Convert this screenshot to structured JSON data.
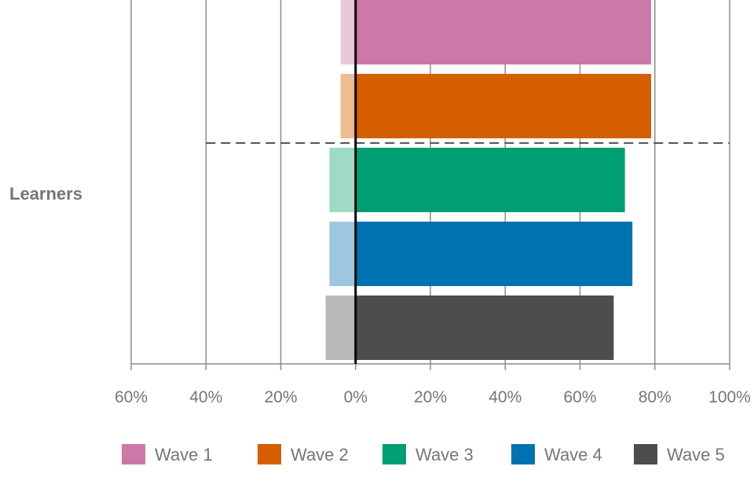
{
  "chart_data": {
    "type": "bar",
    "orientation": "horizontal",
    "stacking": "diverging",
    "category": "Learners",
    "x_tick_labels": [
      "60%",
      "40%",
      "20%",
      "0%",
      "20%",
      "40%",
      "60%",
      "80%",
      "100%"
    ],
    "xlim": [
      -60,
      100
    ],
    "grid": "vertical",
    "legend_position": "bottom",
    "series": [
      {
        "name": "Wave 1",
        "negative": -4,
        "positive": 79,
        "color": "#cc79a7",
        "light_color": "#ebc7da"
      },
      {
        "name": "Wave 2",
        "negative": -4,
        "positive": 79,
        "color": "#d55e00",
        "light_color": "#f0bc92"
      },
      {
        "name": "Wave 3",
        "negative": -7,
        "positive": 72,
        "color": "#009e73",
        "light_color": "#9fdac5"
      },
      {
        "name": "Wave 4",
        "negative": -7,
        "positive": 74,
        "color": "#0072b2",
        "light_color": "#9dc7e0"
      },
      {
        "name": "Wave 5",
        "negative": -8,
        "positive": 69,
        "color": "#4d4d4d",
        "light_color": "#b8b8b8"
      }
    ],
    "divider_after_series_index": 1
  }
}
